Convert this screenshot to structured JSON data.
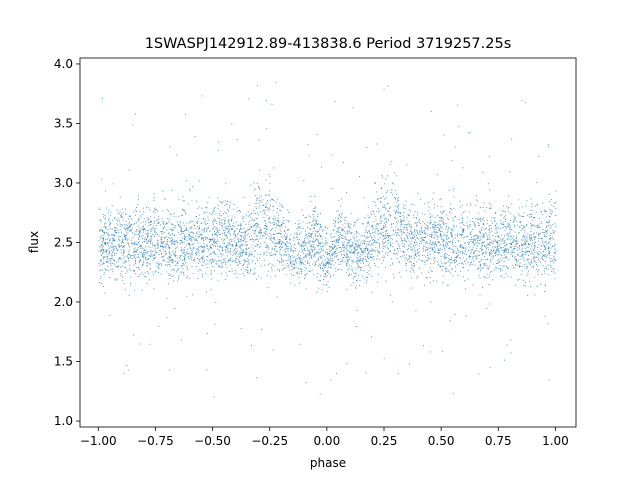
{
  "chart_data": {
    "type": "scatter",
    "title": "1SWASPJ142912.89-413838.6 Period 3719257.25s",
    "xlabel": "phase",
    "ylabel": "flux",
    "xlim": [
      -1.08,
      1.09
    ],
    "ylim": [
      0.95,
      4.05
    ],
    "xticks": [
      -1.0,
      -0.75,
      -0.5,
      -0.25,
      0.0,
      0.25,
      0.5,
      0.75,
      1.0
    ],
    "xtick_labels": [
      "−1.00",
      "−0.75",
      "−0.50",
      "−0.25",
      "0.00",
      "0.25",
      "0.50",
      "0.75",
      "1.00"
    ],
    "yticks": [
      1.0,
      1.5,
      2.0,
      2.5,
      3.0,
      3.5,
      4.0
    ],
    "ytick_labels": [
      "1.0",
      "1.5",
      "2.0",
      "2.5",
      "3.0",
      "3.5",
      "4.0"
    ],
    "grid": false,
    "legend": "none",
    "point_color": "#1f77b4",
    "series": [
      {
        "phase_range": [
          -1.0,
          1.0
        ],
        "symmetric_about_zero": true,
        "x_profile": [
          0.0,
          0.05,
          0.1,
          0.15,
          0.2,
          0.25,
          0.3,
          0.35,
          0.4,
          0.45,
          0.5
        ],
        "median_profile": [
          2.35,
          2.55,
          2.45,
          2.4,
          2.55,
          2.6,
          2.7,
          2.5,
          2.5,
          2.55,
          2.5
        ],
        "spread_profile": [
          0.15,
          0.2,
          0.2,
          0.15,
          0.22,
          0.25,
          0.3,
          0.2,
          0.2,
          0.22,
          0.22
        ],
        "flux_min": 1.05,
        "flux_max": 3.85
      }
    ]
  }
}
